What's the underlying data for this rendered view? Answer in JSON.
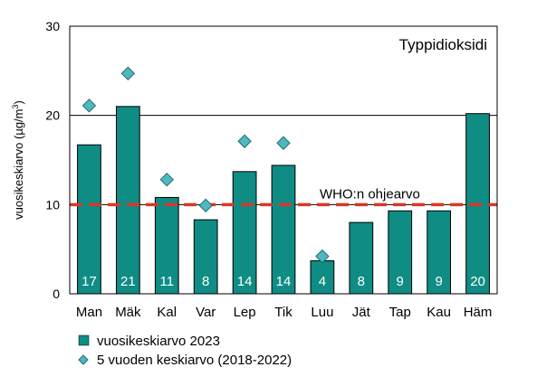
{
  "chart_data": {
    "type": "bar",
    "title": "Typpidioksidi",
    "ylabel": "vuosikeskiarvo (µg/m³)",
    "ylim": [
      0,
      30
    ],
    "yticks": [
      0,
      10,
      20,
      30
    ],
    "grid": "horizontal",
    "categories": [
      "Man",
      "Mäk",
      "Kal",
      "Var",
      "Lep",
      "Tik",
      "Luu",
      "Jät",
      "Tap",
      "Kau",
      "Häm"
    ],
    "series": [
      {
        "name": "vuosikeskiarvo 2023",
        "kind": "bar",
        "color": "#0f8c84",
        "values": [
          16.7,
          21.0,
          10.8,
          8.3,
          13.7,
          14.4,
          3.7,
          8.0,
          9.3,
          9.3,
          20.2
        ],
        "labels": [
          "17",
          "21",
          "11",
          "8",
          "14",
          "14",
          "4",
          "8",
          "9",
          "9",
          "20"
        ]
      },
      {
        "name": "5 vuoden keskiarvo (2018-2022)",
        "kind": "marker",
        "color": "#4fb8bf",
        "values": [
          21.1,
          24.7,
          12.8,
          9.9,
          17.1,
          16.9,
          4.2,
          null,
          null,
          null,
          null
        ]
      }
    ],
    "reference_line": {
      "label": "WHO:n ohjearvo",
      "value": 10,
      "color": "#d9372a"
    },
    "legend": "bottom-left"
  }
}
